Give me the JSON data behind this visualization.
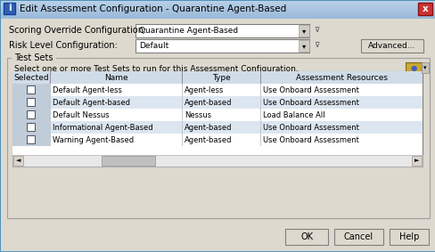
{
  "title": "Edit Assessment Configuration - Quarantine Agent-Based",
  "bg_outer": "#c0ccd8",
  "bg_dialog": "#ddd9ce",
  "titlebar_bg": "#a8bcd0",
  "titlebar_text": "#000000",
  "close_btn_bg": "#c04040",
  "label1": "Scoring Override Configuration:",
  "dropdown1_text": "Quarantine Agent-Based",
  "label2": "Risk Level Configuration:",
  "dropdown2_text": "Default",
  "advanced_btn": "Advanced...",
  "groupbox_title": "Test Sets",
  "groupbox_desc": "Select one or more Test Sets to run for this Assessment Configuration.",
  "table_headers": [
    "Selected",
    "Name",
    "Type",
    "Assessment Resources"
  ],
  "table_rows": [
    [
      "",
      "Default Agent-less",
      "Agent-less",
      "Use Onboard Assessment"
    ],
    [
      "",
      "Default Agent-based",
      "Agent-based",
      "Use Onboard Assessment"
    ],
    [
      "",
      "Default Nessus",
      "Nessus",
      "Load Balance All"
    ],
    [
      "",
      "Informational Agent-Based",
      "Agent-based",
      "Use Onboard Assessment"
    ],
    [
      "",
      "Warning Agent-Based",
      "Agent-based",
      "Use Onboard Assessment"
    ]
  ],
  "row_colors": [
    "#ffffff",
    "#dce6f0",
    "#ffffff",
    "#dce6f0",
    "#ffffff"
  ],
  "header_color": "#d0dce8",
  "ok_btn": "OK",
  "cancel_btn": "Cancel",
  "help_btn": "Help",
  "btn_bg": "#ddd9ce",
  "btn_border": "#7f7f7f",
  "dropdown_bg": "#ffffff",
  "dropdown_border": "#7f7f7f",
  "selected_col_bg": "#c0ccd8",
  "scrollbar_bg": "#e8e8e8",
  "scrollbar_thumb": "#c0c0c0",
  "groupbox_border": "#a0a0a0",
  "table_border": "#7f7f7f"
}
